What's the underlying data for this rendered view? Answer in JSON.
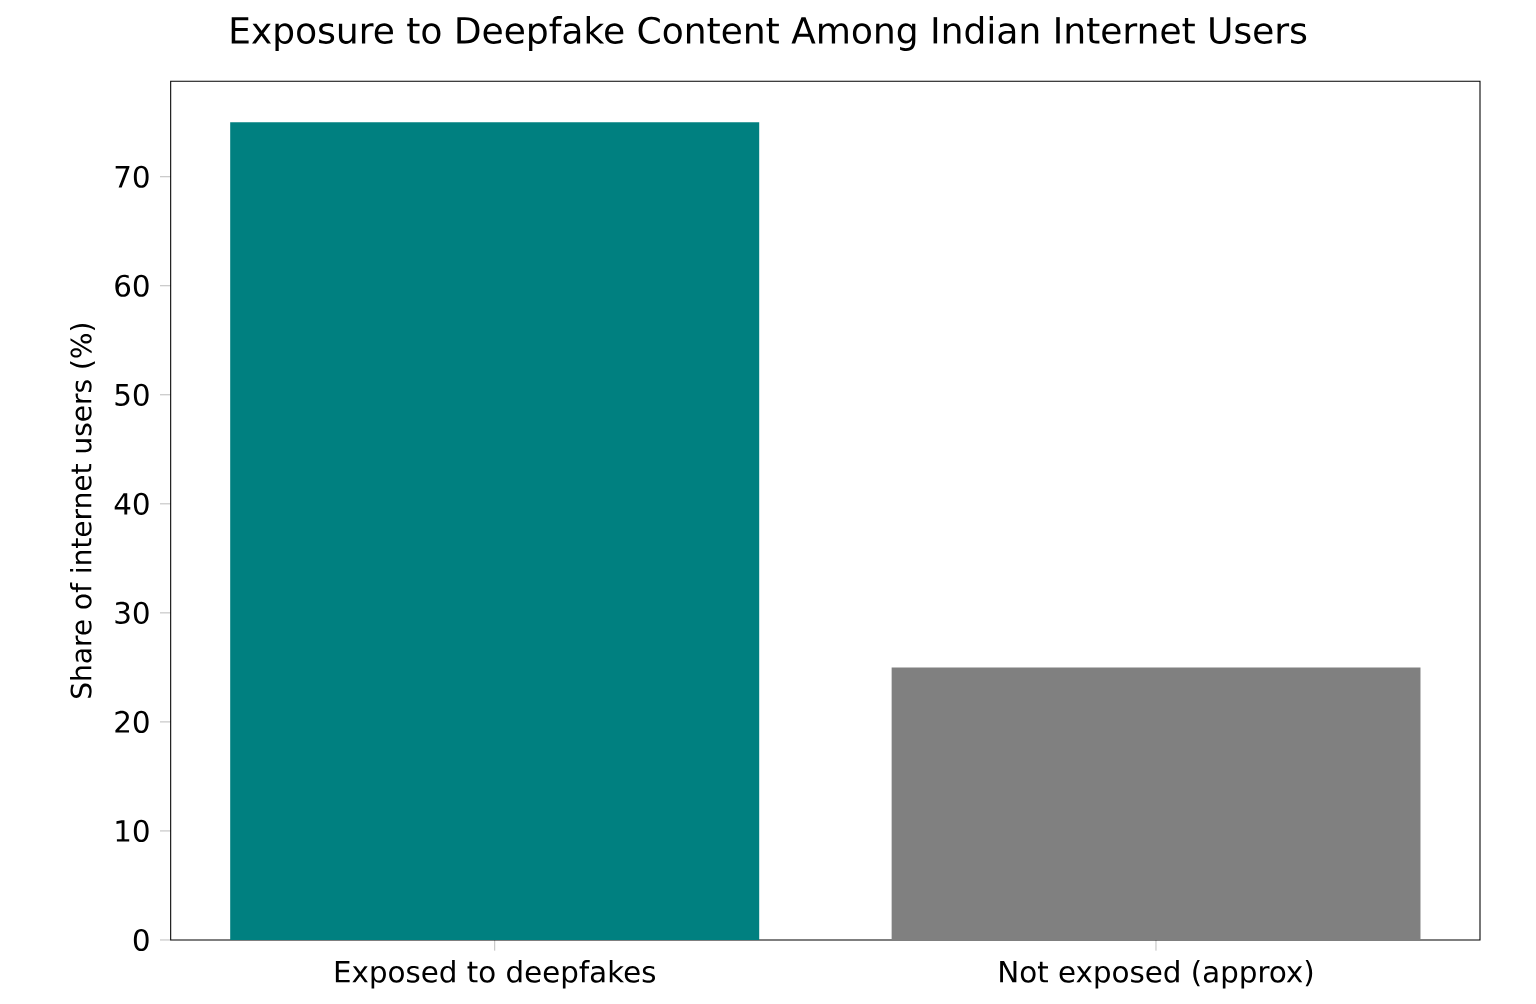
{
  "chart_data": {
    "type": "bar",
    "title": "Exposure to Deepfake Content Among Indian Internet Users",
    "ylabel": "Share of internet users (%)",
    "categories": [
      "Exposed to deepfakes",
      "Not exposed (approx)"
    ],
    "values": [
      75,
      25
    ],
    "colors": [
      "#008080",
      "#808080"
    ],
    "ylim": [
      0,
      78.75
    ],
    "yticks": [
      0,
      10,
      20,
      30,
      40,
      50,
      60,
      70
    ]
  }
}
